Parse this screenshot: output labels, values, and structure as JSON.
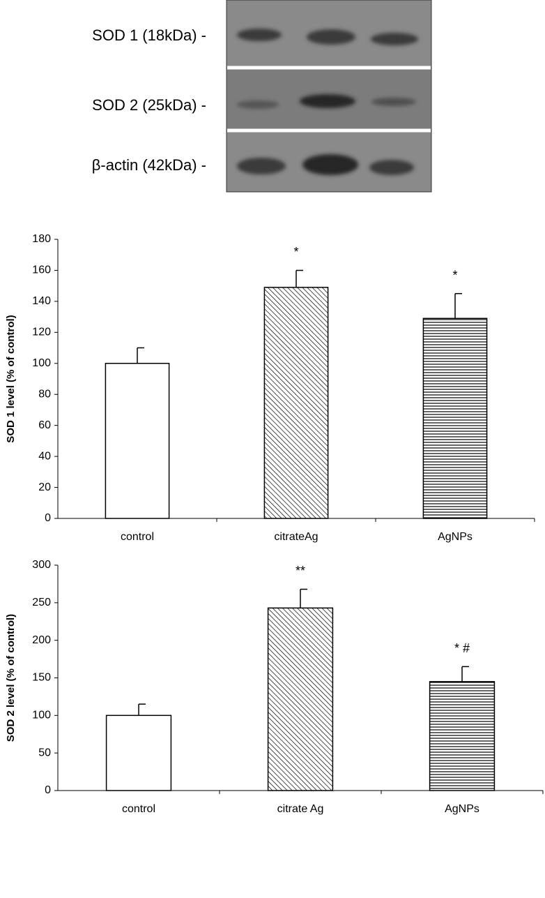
{
  "blot": {
    "labels": [
      "SOD 1 (18kDa) -",
      "SOD 2 (25kDa) -",
      "β-actin (42kDa) -"
    ]
  },
  "chart_data": [
    {
      "type": "bar",
      "ylabel": "SOD 1 level (% of control)",
      "categories": [
        "control",
        "citrateAg",
        "AgNPs"
      ],
      "values": [
        100,
        149,
        129
      ],
      "errors": [
        10,
        11,
        16
      ],
      "annotations": [
        null,
        "*",
        "*"
      ],
      "hatches": [
        "none",
        "diagonal",
        "horizontal"
      ],
      "color": "#ffffff",
      "ylim": [
        0,
        180
      ],
      "yticks": [
        0,
        20,
        40,
        60,
        80,
        100,
        120,
        140,
        160,
        180
      ]
    },
    {
      "type": "bar",
      "ylabel": "SOD 2 level (% of control)",
      "categories": [
        "control",
        "citrate Ag",
        "AgNPs"
      ],
      "values": [
        100,
        243,
        145
      ],
      "errors": [
        15,
        25,
        20
      ],
      "annotations": [
        null,
        "**",
        "* #"
      ],
      "hatches": [
        "none",
        "diagonal",
        "horizontal"
      ],
      "color": "#ffffff",
      "ylim": [
        0,
        300
      ],
      "yticks": [
        0,
        50,
        100,
        150,
        200,
        250,
        300
      ]
    }
  ]
}
